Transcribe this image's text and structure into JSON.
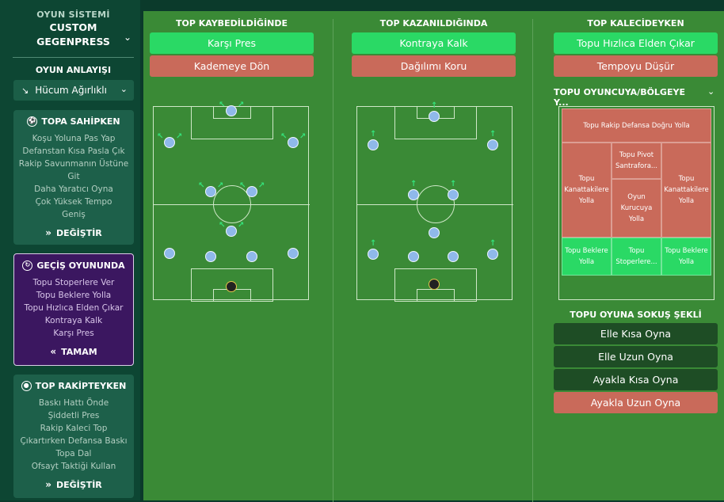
{
  "sidebar": {
    "system_label": "OYUN SİSTEMİ",
    "system_name_1": "CUSTOM",
    "system_name_2": "GEGENPRESS",
    "mentality_label": "OYUN ANLAYIŞI",
    "mentality_value": "Hücum Ağırlıklı",
    "in_possession": {
      "title": "TOPA SAHİPKEN",
      "items": [
        "Koşu Yoluna Pas Yap",
        "Defanstan Kısa Pasla Çık",
        "Rakip Savunmanın Üstüne",
        "Git",
        "Daha Yaratıcı Oyna",
        "Çok Yüksek Tempo",
        "Geniş"
      ],
      "button": "DEĞİŞTİR"
    },
    "in_transition": {
      "title": "GEÇİŞ OYUNUNDA",
      "items": [
        "Topu Stoperlere Ver",
        "Topu Beklere Yolla",
        "Topu Hızlıca Elden Çıkar",
        "Kontraya Kalk",
        "Karşı Pres"
      ],
      "button": "TAMAM"
    },
    "out_possession": {
      "title": "TOP RAKİPTEYKEN",
      "items": [
        "Baskı Hattı Önde",
        "Şiddetli Pres",
        "Rakip Kaleci Top",
        "Çıkartırken Defansa Baskı",
        "Topa Dal",
        "Ofsayt Taktiği Kullan"
      ],
      "button": "DEĞİŞTİR"
    }
  },
  "columns": {
    "lost": {
      "title": "TOP KAYBEDİLDİĞİNDE",
      "option_1": "Karşı Pres",
      "option_2": "Kademeye Dön"
    },
    "won": {
      "title": "TOP KAZANILDIĞINDA",
      "option_1": "Kontraya Kalk",
      "option_2": "Dağılımı Koru"
    },
    "keeper": {
      "title": "TOP KALECİDEYKEN",
      "option_1": "Topu Hızlıca Elden Çıkar",
      "option_2": "Tempoyu Düşür",
      "distribution_title": "TOPU OYUNCUYA/BÖLGEYE Y...",
      "zones": {
        "top": "Topu Rakip Defansa Doğru Yolla",
        "left_wing": "Topu Kanattakilere Yolla",
        "right_wing": "Topu Kanattakilere Yolla",
        "pivot": "Topu Pivot Santrafora...",
        "playmaker": "Oyun Kurucuya Yolla",
        "left_back": "Topu Beklere Yolla",
        "centre_backs": "Topu Stoperlere...",
        "right_back": "Topu Beklere Yolla"
      },
      "restart_title": "TOPU OYUNA SOKUŞ ŞEKLİ",
      "restart_options": [
        "Elle Kısa Oyna",
        "Elle Uzun Oyna",
        "Ayakla Kısa Oyna",
        "Ayakla Uzun Oyna"
      ]
    }
  },
  "colors": {
    "accent_green": "#2ad965",
    "accent_red": "#c96a5a",
    "pitch": "#3a8a36",
    "panel_active": "#3b1760"
  }
}
